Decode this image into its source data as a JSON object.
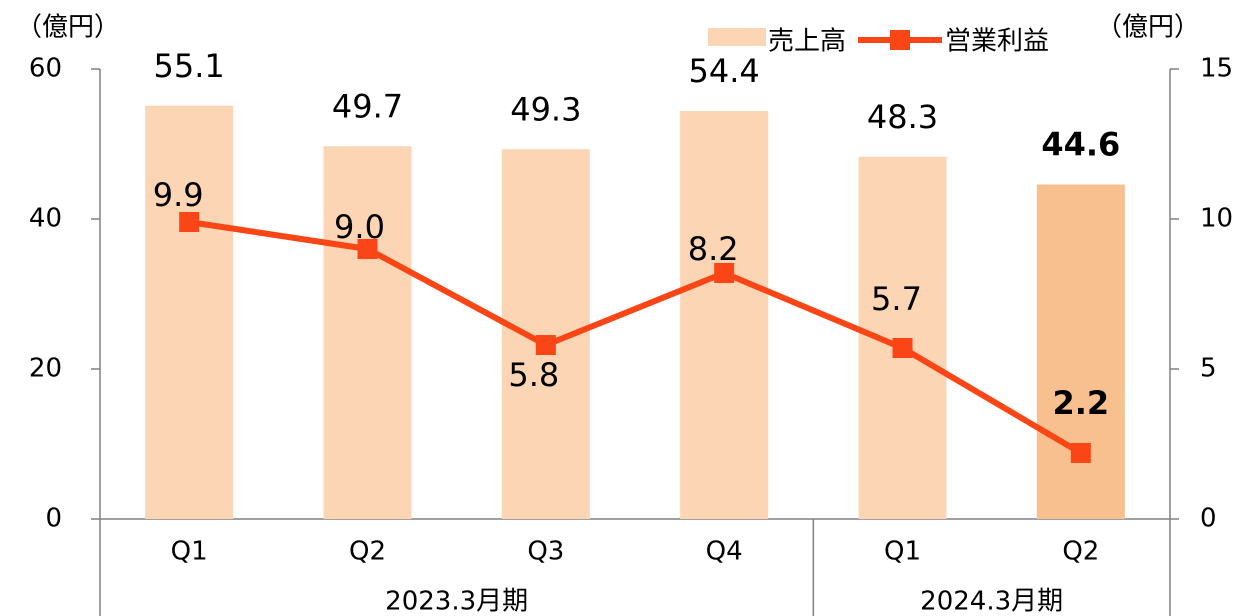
{
  "chart_data": {
    "type": "bar",
    "y_unit": "（億円）",
    "y2_unit": "（億円）",
    "groups": [
      {
        "name": "2023.3月期",
        "categories": [
          "Q1",
          "Q2",
          "Q3",
          "Q4"
        ]
      },
      {
        "name": "2024.3月期",
        "categories": [
          "Q1",
          "Q2"
        ]
      }
    ],
    "series": [
      {
        "name": "売上高",
        "type": "bar",
        "color": "#fcd5b4",
        "colors": [
          "#fcd5b4",
          "#fcd5b4",
          "#fcd5b4",
          "#fcd5b4",
          "#fcd5b4",
          "#f8c08f"
        ],
        "values": [
          55.1,
          49.7,
          49.3,
          54.4,
          48.3,
          44.6
        ]
      },
      {
        "name": "営業利益",
        "type": "line",
        "axis": "y2",
        "color": "#fa4616",
        "values": [
          9.9,
          9.0,
          5.8,
          8.2,
          5.7,
          2.2
        ],
        "value_labels": [
          "9.9",
          "9.0",
          "5.8",
          "8.2",
          "5.7",
          "2.2"
        ]
      }
    ],
    "ylim": [
      0,
      60
    ],
    "yticks": [
      0,
      20,
      40,
      60
    ],
    "y2lim": [
      0,
      15
    ],
    "y2ticks": [
      0,
      5,
      10,
      15
    ]
  }
}
